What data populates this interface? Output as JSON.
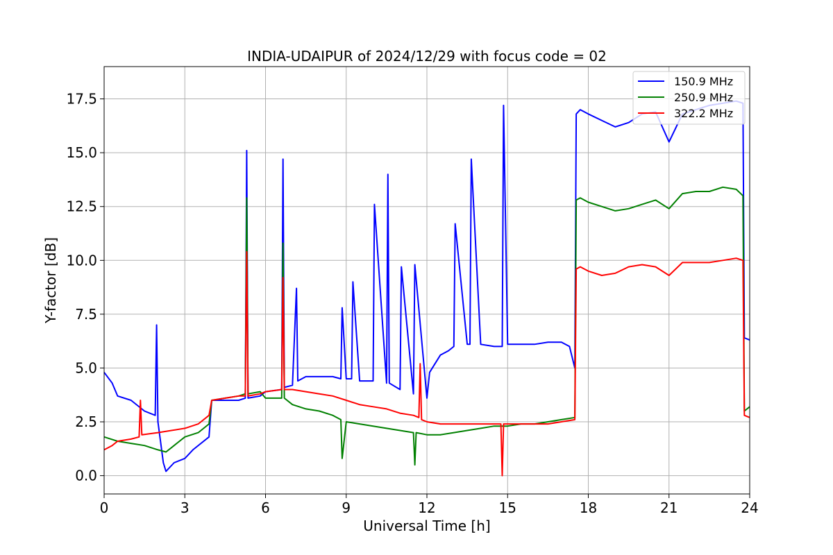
{
  "chart_data": {
    "type": "line",
    "title": "INDIA-UDAIPUR of 2024/12/29 with focus code = 02",
    "xlabel": "Universal Time [h]",
    "ylabel": "Y-factor [dB]",
    "xlim": [
      0,
      24
    ],
    "ylim": [
      -0.85,
      19.0
    ],
    "xticks": [
      0,
      3,
      6,
      9,
      12,
      15,
      18,
      21,
      24
    ],
    "xtick_labels": [
      "0",
      "3",
      "6",
      "9",
      "12",
      "15",
      "18",
      "21",
      "24"
    ],
    "yticks": [
      0.0,
      2.5,
      5.0,
      7.5,
      10.0,
      12.5,
      15.0,
      17.5
    ],
    "ytick_labels": [
      "0.0",
      "2.5",
      "5.0",
      "7.5",
      "10.0",
      "12.5",
      "15.0",
      "17.5"
    ],
    "grid": true,
    "legend_position": "top-right",
    "series": [
      {
        "name": "150.9 MHz",
        "color": "#0000ff",
        "x": [
          0.0,
          0.3,
          0.5,
          1.0,
          1.5,
          1.9,
          1.95,
          2.0,
          2.2,
          2.3,
          2.6,
          3.0,
          3.3,
          3.9,
          4.0,
          4.5,
          5.0,
          5.25,
          5.3,
          5.35,
          5.8,
          6.0,
          6.6,
          6.65,
          6.7,
          7.0,
          7.15,
          7.2,
          7.5,
          8.0,
          8.5,
          8.8,
          8.85,
          9.0,
          9.2,
          9.25,
          9.5,
          10.0,
          10.05,
          10.5,
          10.55,
          10.6,
          11.0,
          11.05,
          11.5,
          11.55,
          12.0,
          12.1,
          12.5,
          12.8,
          13.0,
          13.05,
          13.5,
          13.6,
          13.65,
          14.0,
          14.5,
          14.8,
          14.85,
          15.0,
          15.5,
          16.0,
          16.5,
          17.0,
          17.3,
          17.5,
          17.55,
          17.7,
          18.0,
          18.5,
          19.0,
          19.5,
          20.0,
          20.5,
          21.0,
          21.5,
          22.0,
          22.5,
          23.0,
          23.5,
          23.75,
          23.8,
          24.0
        ],
        "y": [
          4.8,
          4.3,
          3.7,
          3.5,
          3.0,
          2.8,
          7.0,
          2.5,
          0.6,
          0.2,
          0.6,
          0.8,
          1.2,
          1.8,
          3.5,
          3.5,
          3.5,
          3.6,
          15.1,
          3.6,
          3.7,
          3.9,
          4.0,
          14.7,
          4.1,
          4.2,
          8.7,
          4.4,
          4.6,
          4.6,
          4.6,
          4.5,
          7.8,
          4.5,
          4.5,
          9.0,
          4.4,
          4.4,
          12.6,
          4.3,
          14.0,
          4.3,
          4.0,
          9.7,
          3.8,
          9.8,
          3.6,
          4.8,
          5.6,
          5.8,
          6.0,
          11.7,
          6.1,
          6.1,
          14.7,
          6.1,
          6.0,
          6.0,
          17.2,
          6.1,
          6.1,
          6.1,
          6.2,
          6.2,
          6.0,
          5.0,
          16.8,
          17.0,
          16.8,
          16.5,
          16.2,
          16.4,
          16.8,
          16.9,
          15.5,
          16.8,
          17.0,
          17.2,
          17.3,
          17.4,
          17.3,
          6.4,
          6.3
        ]
      },
      {
        "name": "250.9 MHz",
        "color": "#008000",
        "x": [
          0.0,
          0.5,
          1.0,
          1.5,
          2.0,
          2.3,
          2.5,
          3.0,
          3.5,
          3.9,
          4.0,
          4.5,
          5.0,
          5.25,
          5.3,
          5.35,
          5.8,
          6.0,
          6.6,
          6.65,
          6.7,
          7.0,
          7.5,
          8.0,
          8.5,
          8.8,
          8.85,
          9.0,
          9.5,
          10.0,
          10.5,
          11.0,
          11.5,
          11.55,
          11.6,
          12.0,
          12.5,
          13.0,
          13.5,
          14.0,
          14.5,
          15.0,
          15.5,
          16.0,
          16.5,
          17.0,
          17.5,
          17.55,
          17.7,
          18.0,
          18.5,
          19.0,
          19.5,
          20.0,
          20.5,
          21.0,
          21.5,
          22.0,
          22.5,
          23.0,
          23.5,
          23.75,
          23.8,
          24.0
        ],
        "y": [
          1.8,
          1.6,
          1.5,
          1.4,
          1.2,
          1.1,
          1.3,
          1.8,
          2.0,
          2.4,
          3.5,
          3.6,
          3.7,
          3.8,
          12.9,
          3.8,
          3.9,
          3.6,
          3.6,
          10.8,
          3.6,
          3.3,
          3.1,
          3.0,
          2.8,
          2.6,
          0.8,
          2.5,
          2.4,
          2.3,
          2.2,
          2.1,
          2.0,
          0.5,
          2.0,
          1.9,
          1.9,
          2.0,
          2.1,
          2.2,
          2.3,
          2.3,
          2.4,
          2.4,
          2.5,
          2.6,
          2.7,
          12.8,
          12.9,
          12.7,
          12.5,
          12.3,
          12.4,
          12.6,
          12.8,
          12.4,
          13.1,
          13.2,
          13.2,
          13.4,
          13.3,
          13.0,
          3.0,
          3.2
        ]
      },
      {
        "name": "322.2 MHz",
        "color": "#ff0000",
        "x": [
          0.0,
          0.3,
          0.5,
          1.0,
          1.3,
          1.35,
          1.4,
          2.0,
          2.5,
          3.0,
          3.5,
          3.9,
          4.0,
          4.5,
          5.0,
          5.25,
          5.3,
          5.35,
          5.8,
          6.0,
          6.6,
          6.65,
          6.7,
          7.0,
          7.5,
          8.0,
          8.5,
          9.0,
          9.5,
          10.0,
          10.5,
          11.0,
          11.5,
          11.7,
          11.75,
          11.8,
          12.0,
          12.5,
          13.0,
          13.5,
          14.0,
          14.5,
          14.75,
          14.8,
          14.85,
          15.0,
          15.5,
          16.0,
          16.5,
          17.0,
          17.5,
          17.55,
          17.7,
          18.0,
          18.5,
          19.0,
          19.5,
          20.0,
          20.5,
          21.0,
          21.5,
          22.0,
          22.5,
          23.0,
          23.5,
          23.75,
          23.8,
          24.0
        ],
        "y": [
          1.2,
          1.4,
          1.6,
          1.7,
          1.8,
          3.5,
          1.9,
          2.0,
          2.1,
          2.2,
          2.4,
          2.8,
          3.5,
          3.6,
          3.7,
          3.7,
          10.4,
          3.7,
          3.8,
          3.9,
          4.0,
          9.2,
          4.0,
          4.0,
          3.9,
          3.8,
          3.7,
          3.5,
          3.3,
          3.2,
          3.1,
          2.9,
          2.8,
          2.7,
          5.2,
          2.6,
          2.5,
          2.4,
          2.4,
          2.4,
          2.4,
          2.4,
          2.4,
          0.0,
          2.4,
          2.4,
          2.4,
          2.4,
          2.4,
          2.5,
          2.6,
          9.6,
          9.7,
          9.5,
          9.3,
          9.4,
          9.7,
          9.8,
          9.7,
          9.3,
          9.9,
          9.9,
          9.9,
          10.0,
          10.1,
          10.0,
          2.8,
          2.7
        ]
      }
    ]
  }
}
